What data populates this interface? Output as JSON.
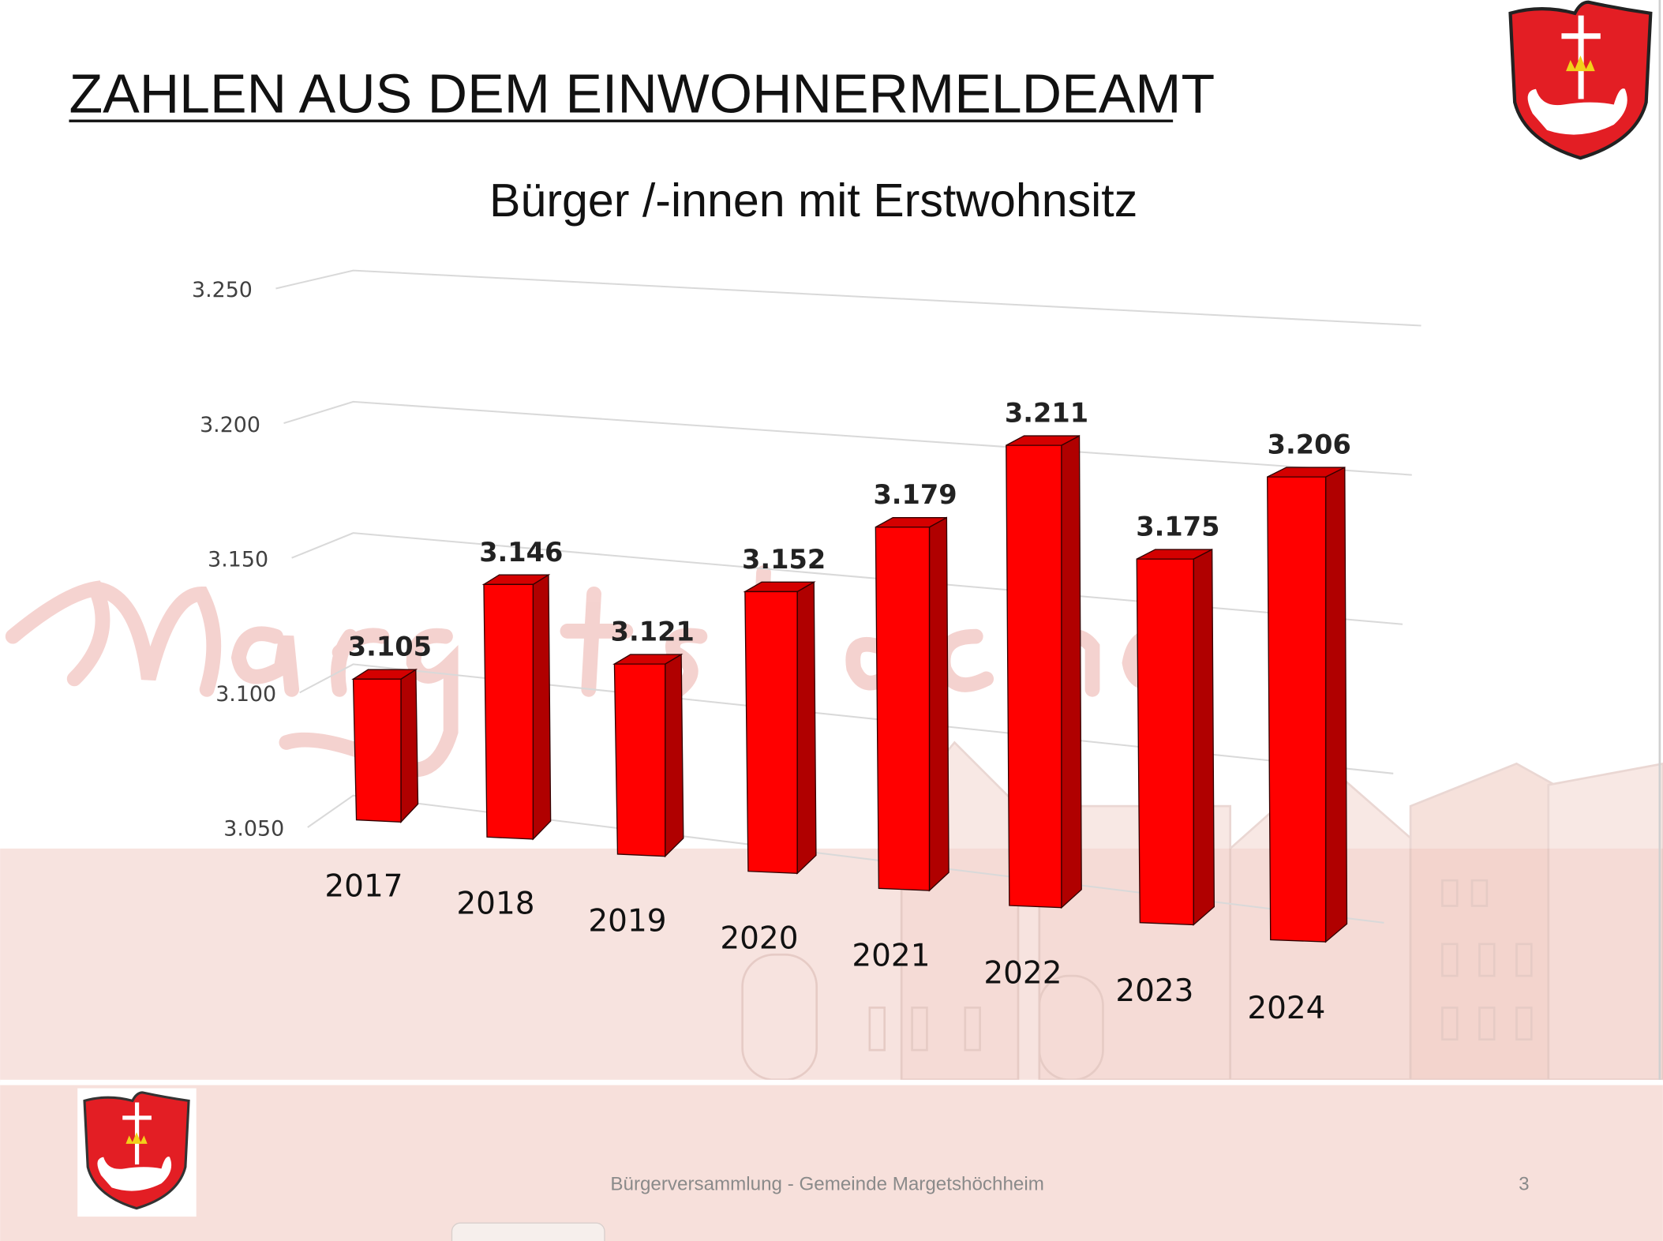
{
  "slide": {
    "title": "ZAHLEN AUS DEM EINWOHNERMELDEAMT",
    "watermark": "Margetshöchheim",
    "footer_text": "Bürgerversammlung - Gemeinde Margetshöchheim",
    "page_number": "3",
    "colors": {
      "bar": "#ff0000",
      "bar_side": "#b00000",
      "bar_top": "#d40000",
      "footer_bg": "#f7e0db",
      "watermark": "#f2c8c4"
    }
  },
  "chart_data": {
    "type": "bar",
    "title": "Bürger /-innen mit Erstwohnsitz",
    "categories": [
      "2017",
      "2018",
      "2019",
      "2020",
      "2021",
      "2022",
      "2023",
      "2024"
    ],
    "values": [
      3105,
      3146,
      3121,
      3152,
      3179,
      3211,
      3175,
      3206
    ],
    "value_labels": [
      "3.105",
      "3.146",
      "3.121",
      "3.152",
      "3.179",
      "3.211",
      "3.175",
      "3.206"
    ],
    "ylim": [
      3050,
      3250
    ],
    "yticks": [
      "3.050",
      "3.100",
      "3.150",
      "3.200",
      "3.250"
    ],
    "grid": true,
    "xlabel": "",
    "ylabel": ""
  }
}
